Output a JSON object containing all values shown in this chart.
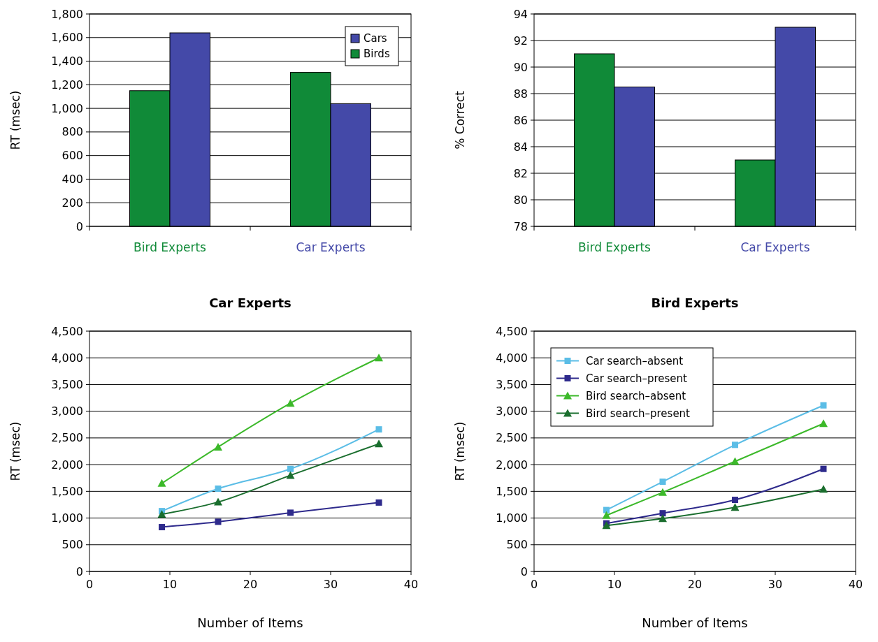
{
  "chart_data": [
    {
      "type": "bar",
      "ylabel": "RT (msec)",
      "categories": [
        "Bird Experts",
        "Car Experts"
      ],
      "series": [
        {
          "name": "Birds",
          "color": "#108a38",
          "values": [
            1150,
            1305
          ]
        },
        {
          "name": "Cars",
          "color": "#4449a8",
          "values": [
            1640,
            1040
          ]
        }
      ],
      "ylim": [
        0,
        1800
      ],
      "yticks": [
        0,
        200,
        400,
        600,
        800,
        {
          "value": 1000,
          "label": "1,000"
        },
        {
          "value": 1200,
          "label": "1,200"
        },
        {
          "value": 1400,
          "label": "1,400"
        },
        {
          "value": 1600,
          "label": "1,600"
        },
        {
          "value": 1800,
          "label": "1,800"
        }
      ],
      "grid": "y",
      "legend": "top right"
    },
    {
      "type": "bar",
      "ylabel": "% Correct",
      "categories": [
        "Bird Experts",
        "Car Experts"
      ],
      "series": [
        {
          "color": "#108a38",
          "values": [
            91,
            83
          ]
        },
        {
          "color": "#4449a8",
          "values": [
            88.5,
            93
          ]
        }
      ],
      "ylim": [
        78,
        94
      ],
      "yticks": [
        78,
        80,
        82,
        84,
        86,
        88,
        90,
        92,
        94
      ],
      "grid": "y"
    },
    {
      "type": "line",
      "title": "Car Experts",
      "xlabel": "Number of Items",
      "ylabel": "RT (msec)",
      "x": [
        9,
        16,
        25,
        36
      ],
      "series": [
        {
          "color": "#5bbde6",
          "marker": "square",
          "values": [
            1130,
            1550,
            1920,
            2660
          ]
        },
        {
          "color": "#2e2a8c",
          "marker": "square",
          "values": [
            830,
            930,
            1100,
            1290
          ]
        },
        {
          "color": "#3cb92a",
          "marker": "triangle",
          "values": [
            1650,
            2330,
            3150,
            4000
          ]
        },
        {
          "color": "#1a6e2e",
          "marker": "triangle",
          "values": [
            1070,
            1300,
            1800,
            2390
          ]
        }
      ],
      "xlim": [
        0,
        40
      ],
      "xticks": [
        0,
        10,
        20,
        30,
        40
      ],
      "ylim": [
        0,
        4500
      ],
      "yticks": [
        0,
        500,
        {
          "value": 1000,
          "label": "1,000"
        },
        {
          "value": 1500,
          "label": "1,500"
        },
        {
          "value": 2000,
          "label": "2,000"
        },
        {
          "value": 2500,
          "label": "2,500"
        },
        {
          "value": 3000,
          "label": "3,000"
        },
        {
          "value": 3500,
          "label": "3,500"
        },
        {
          "value": 4000,
          "label": "4,000"
        },
        {
          "value": 4500,
          "label": "4,500"
        }
      ],
      "grid": "y"
    },
    {
      "type": "line",
      "title": "Bird Experts",
      "xlabel": "Number of Items",
      "ylabel": "RT (msec)",
      "x": [
        9,
        16,
        25,
        36
      ],
      "series": [
        {
          "name": "Car search–absent",
          "color": "#5bbde6",
          "marker": "square",
          "values": [
            1150,
            1680,
            2370,
            3110
          ]
        },
        {
          "name": "Car search–present",
          "color": "#2e2a8c",
          "marker": "square",
          "values": [
            900,
            1090,
            1340,
            1920
          ]
        },
        {
          "name": "Bird search–absent",
          "color": "#3cb92a",
          "marker": "triangle",
          "values": [
            1050,
            1480,
            2060,
            2770
          ]
        },
        {
          "name": "Bird search–present",
          "color": "#1a6e2e",
          "marker": "triangle",
          "values": [
            860,
            990,
            1200,
            1540
          ]
        }
      ],
      "xlim": [
        0,
        40
      ],
      "xticks": [
        0,
        10,
        20,
        30,
        40
      ],
      "ylim": [
        0,
        4500
      ],
      "yticks": [
        0,
        500,
        {
          "value": 1000,
          "label": "1,000"
        },
        {
          "value": 1500,
          "label": "1,500"
        },
        {
          "value": 2000,
          "label": "2,000"
        },
        {
          "value": 2500,
          "label": "2,500"
        },
        {
          "value": 3000,
          "label": "3,000"
        },
        {
          "value": 3500,
          "label": "3,500"
        },
        {
          "value": 4000,
          "label": "4,000"
        },
        {
          "value": 4500,
          "label": "4,500"
        }
      ],
      "grid": "y",
      "legend": "top left"
    }
  ]
}
